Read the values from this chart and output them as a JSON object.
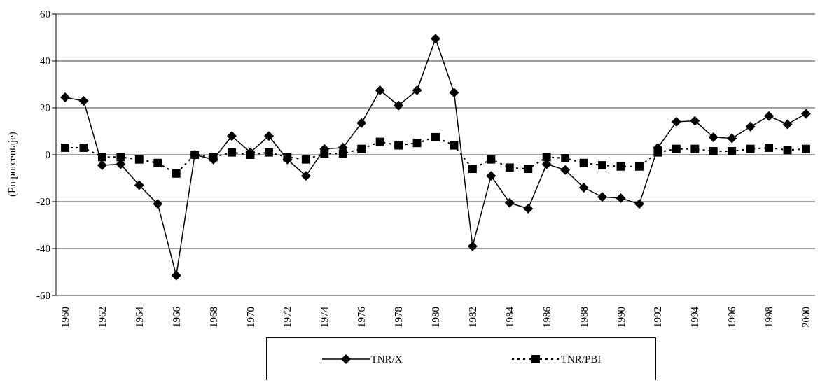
{
  "chart_data": {
    "type": "line",
    "ylabel": "(En porcentaje)",
    "categories": [
      "1960",
      null,
      "1962",
      null,
      "1964",
      null,
      "1966",
      null,
      "1968",
      null,
      "1970",
      null,
      "1972",
      null,
      "1974",
      null,
      "1976",
      null,
      "1978",
      null,
      "1980",
      null,
      "1982",
      null,
      "1984",
      null,
      "1986",
      null,
      "1988",
      null,
      "1990",
      null,
      "1992",
      null,
      "1994",
      null,
      "1996",
      null,
      "1998",
      null,
      "2000"
    ],
    "series": [
      {
        "name": "TNR/X",
        "color": "#000000",
        "marker": "diamond",
        "line_style": "solid",
        "values": [
          24.5,
          23,
          -4.5,
          -4,
          -13,
          -21,
          -51.5,
          0,
          -2,
          8,
          1,
          8,
          -2,
          -9,
          2.5,
          3,
          13.5,
          27.5,
          21,
          27.5,
          49.5,
          26.5,
          -39,
          -9,
          -20.5,
          -23,
          -4,
          -6.5,
          -14,
          -18,
          -18.5,
          -21,
          3,
          14,
          14.5,
          7.5,
          7,
          12,
          16.5,
          13,
          17.5
        ]
      },
      {
        "name": "TNR/PBI",
        "color": "#000000",
        "marker": "square",
        "line_style": "dotted",
        "values": [
          3,
          3,
          -1,
          -1,
          -2,
          -3.5,
          -8,
          0,
          -1,
          1,
          0,
          1,
          -1,
          -2,
          0.5,
          0.5,
          2.5,
          5.5,
          4,
          5,
          7.5,
          4,
          -6,
          -2,
          -5.5,
          -6,
          -1,
          -1.5,
          -3.5,
          -4.5,
          -5,
          -5,
          1,
          2.5,
          2.5,
          1.5,
          1.5,
          2.5,
          3,
          2,
          2.5
        ]
      }
    ],
    "ylim": [
      -60,
      60
    ],
    "yticks": [
      -60,
      -40,
      -20,
      0,
      20,
      40,
      60
    ],
    "grid": "y",
    "legend": "bottom"
  }
}
